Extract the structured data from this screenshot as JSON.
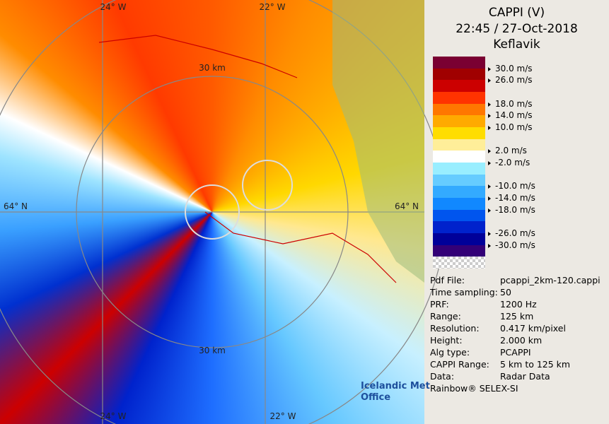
{
  "header": {
    "title": "CAPPI (V)",
    "datetime": "22:45 / 27-Oct-2018",
    "station": "Keflavik"
  },
  "legend": {
    "labels": [
      "30.0 m/s",
      "26.0 m/s",
      "18.0 m/s",
      "14.0 m/s",
      "10.0 m/s",
      "2.0 m/s",
      "-2.0 m/s",
      "-10.0 m/s",
      "-14.0 m/s",
      "-18.0 m/s",
      "-26.0 m/s",
      "-30.0 m/s"
    ]
  },
  "info": {
    "rows": [
      [
        "Pdf File:",
        "pcappi_2km-120.cappi"
      ],
      [
        "Time sampling:",
        "50"
      ],
      [
        "PRF:",
        "1200 Hz"
      ],
      [
        "Range:",
        "125 km"
      ],
      [
        "Resolution:",
        "0.417 km/pixel"
      ],
      [
        "Height:",
        "2.000 km"
      ],
      [
        "Alg type:",
        "PCAPPI"
      ],
      [
        "CAPPI Range:",
        "5 km to 125 km"
      ],
      [
        "Data:",
        "Radar Data"
      ]
    ]
  },
  "footer": "Rainbow® SELEX-SI",
  "map": {
    "labels": [
      "24° W",
      "22° W",
      "30 km",
      "64° N",
      "64° N",
      "30 km",
      "24° W",
      "22° W"
    ],
    "logo": [
      "Icelandic Met",
      "Office"
    ]
  }
}
